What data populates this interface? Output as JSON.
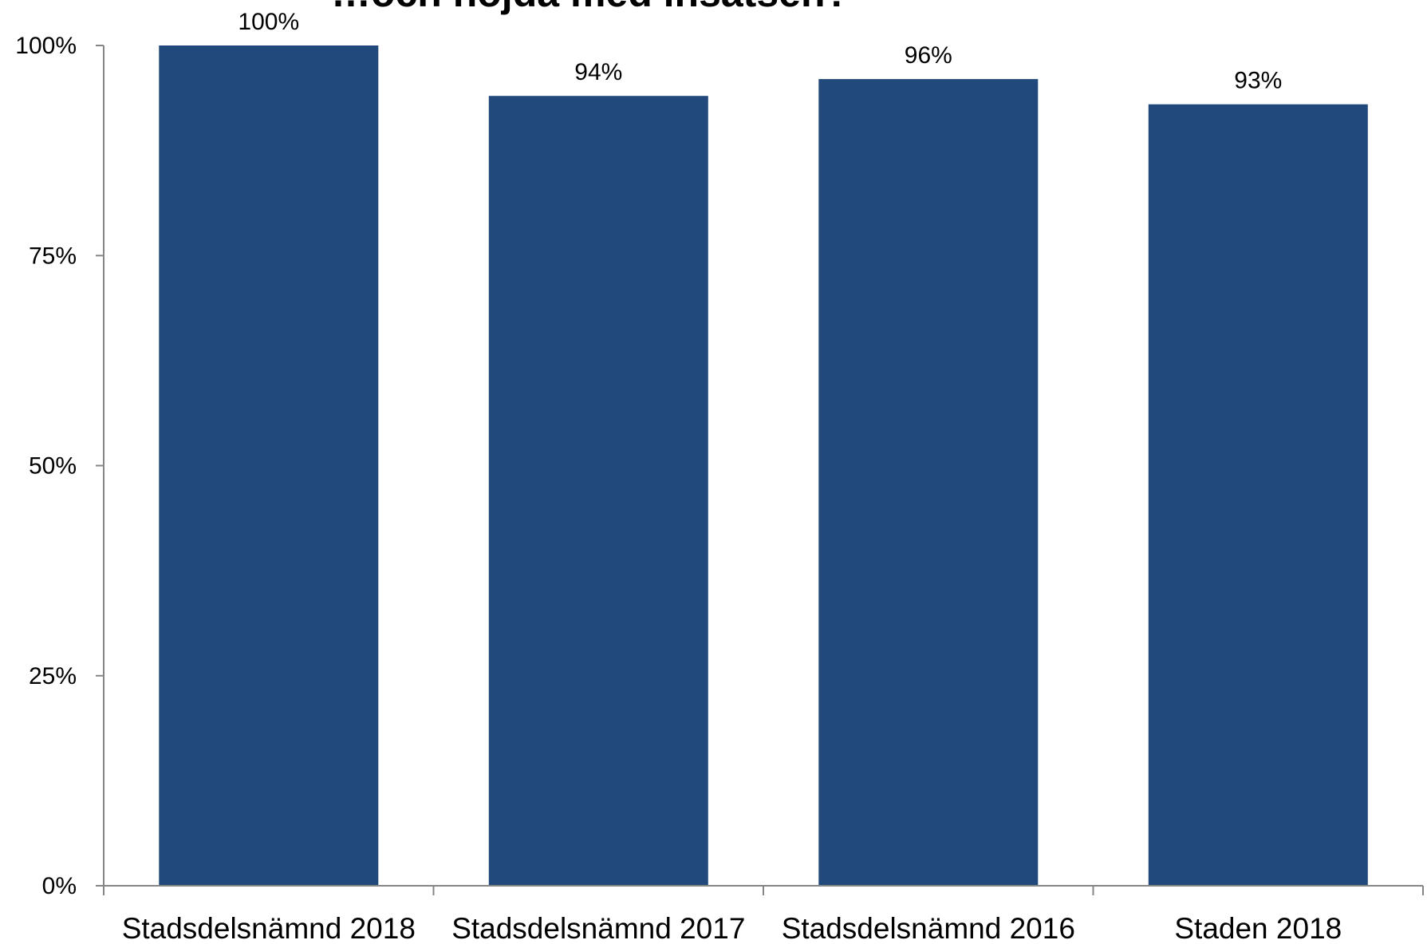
{
  "chart_data": {
    "type": "bar",
    "title": "…och nöjda med insatsen?",
    "categories": [
      "Stadsdelsnämnd 2018",
      "Stadsdelsnämnd 2017",
      "Stadsdelsnämnd 2016",
      "Staden 2018"
    ],
    "series": [
      {
        "values": [
          100,
          94,
          96,
          93
        ],
        "value_labels": [
          "100%",
          "94%",
          "96%",
          "93%"
        ],
        "color": "#21497c"
      }
    ],
    "ylim": [
      0,
      100
    ],
    "yticks": [
      {
        "value": 0,
        "label": "0%"
      },
      {
        "value": 25,
        "label": "25%"
      },
      {
        "value": 50,
        "label": "50%"
      },
      {
        "value": 75,
        "label": "75%"
      },
      {
        "value": 100,
        "label": "100%"
      }
    ],
    "xlabel": "",
    "ylabel": "",
    "grid": false,
    "legend": "none",
    "axis_color": "#868686"
  }
}
